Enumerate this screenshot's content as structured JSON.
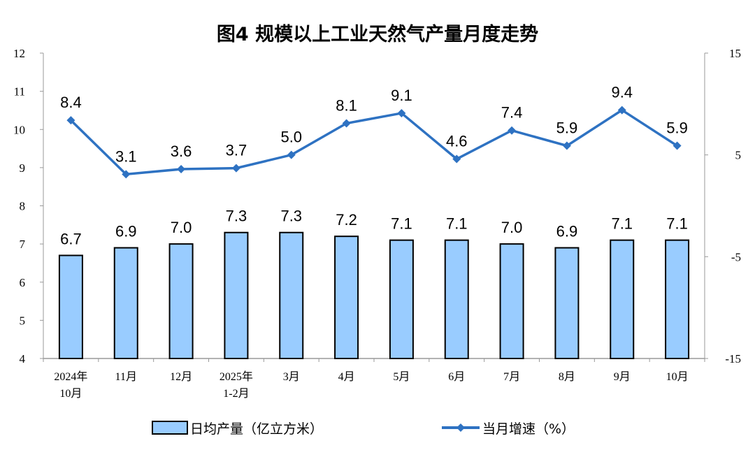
{
  "chart_data": {
    "type": "bar+line",
    "title": "图4  规模以上工业天然气产量月度走势",
    "categories": [
      [
        "2024年",
        "10月"
      ],
      [
        "11月"
      ],
      [
        "12月"
      ],
      [
        "2025年",
        "1-2月"
      ],
      [
        "3月"
      ],
      [
        "4月"
      ],
      [
        "5月"
      ],
      [
        "6月"
      ],
      [
        "7月"
      ],
      [
        "8月"
      ],
      [
        "9月"
      ],
      [
        "10月"
      ]
    ],
    "series": [
      {
        "name": "日均产量（亿立方米）",
        "type": "bar",
        "axis": "left",
        "color": "#99CCFF",
        "values": [
          6.7,
          6.9,
          7.0,
          7.3,
          7.3,
          7.2,
          7.1,
          7.1,
          7.0,
          6.9,
          7.1,
          7.1
        ]
      },
      {
        "name": "当月增速（%）",
        "type": "line",
        "axis": "right",
        "color": "#2E72C2",
        "values": [
          8.4,
          3.1,
          3.6,
          3.7,
          5.0,
          8.1,
          9.1,
          4.6,
          7.4,
          5.9,
          9.4,
          5.9
        ]
      }
    ],
    "left_axis": {
      "ylim": [
        4,
        12
      ],
      "ticks": [
        4,
        5,
        6,
        7,
        8,
        9,
        10,
        11,
        12
      ]
    },
    "right_axis": {
      "ylim": [
        -15,
        15
      ],
      "ticks": [
        -15,
        -5,
        5,
        15
      ]
    },
    "grid": false,
    "legend": "bottom"
  }
}
